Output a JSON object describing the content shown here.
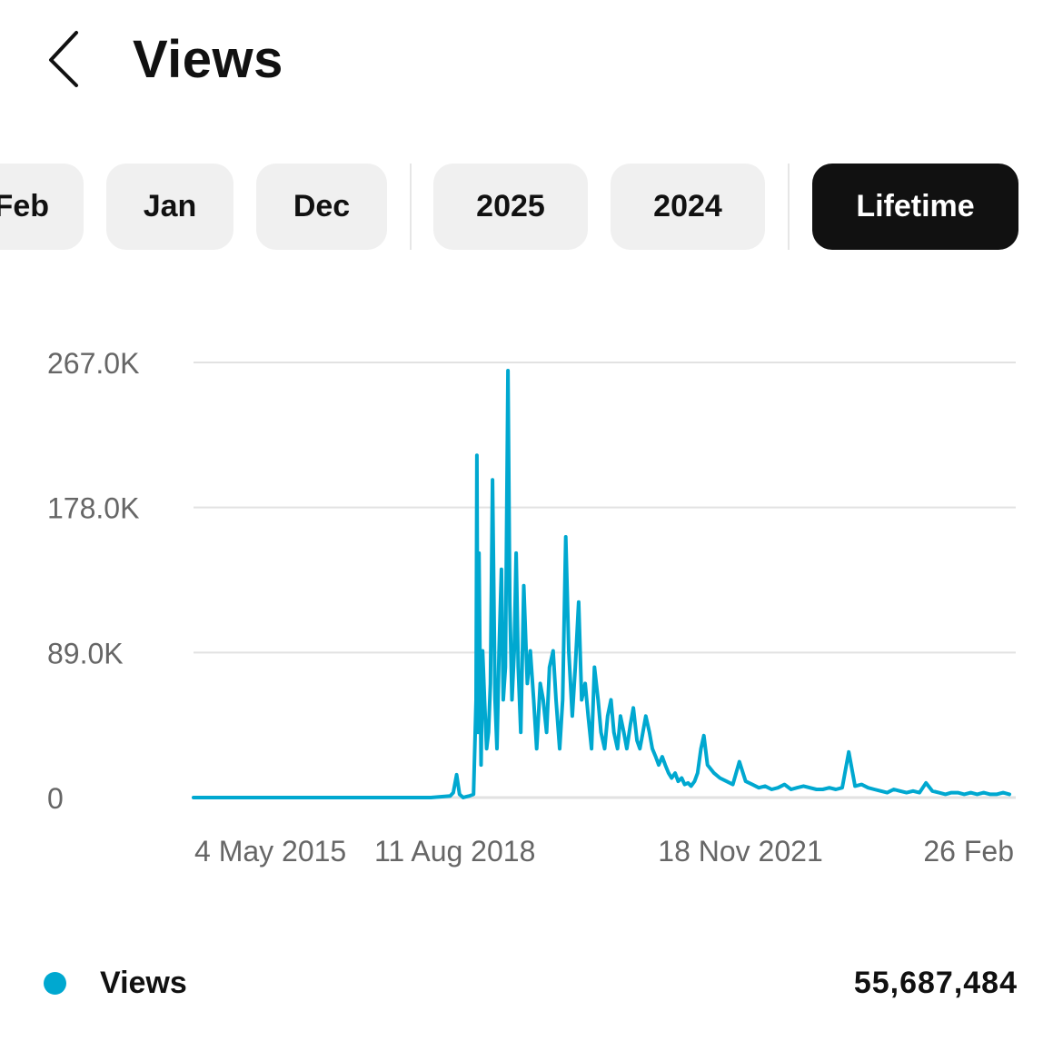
{
  "header": {
    "back_icon": "chevron-left-icon",
    "title": "Views"
  },
  "tabs": [
    {
      "label": "Feb",
      "active": false
    },
    {
      "label": "Jan",
      "active": false
    },
    {
      "label": "Dec",
      "active": false
    },
    {
      "label": "2025",
      "active": false
    },
    {
      "label": "2024",
      "active": false
    },
    {
      "label": "Lifetime",
      "active": true
    }
  ],
  "colors": {
    "series": "#00a8d0",
    "active_tab_bg": "#111111",
    "tab_bg": "#f0f0f0",
    "grid": "#e2e2e2",
    "axis_text": "#666666"
  },
  "chart_data": {
    "type": "line",
    "title": "",
    "xlabel": "",
    "ylabel": "",
    "x_tick_labels": [
      "4 May 2015",
      "11 Aug 2018",
      "18 Nov 2021",
      "26 Feb"
    ],
    "y_tick_labels": [
      "0",
      "89.0K",
      "178.0K",
      "267.0K"
    ],
    "y_ticks": [
      0,
      89000,
      178000,
      267000
    ],
    "ylim": [
      0,
      267000
    ],
    "xlim": [
      "2015-05-04",
      "2025-12-31"
    ],
    "grid": true,
    "legend_position": "bottom",
    "series": [
      {
        "name": "Views",
        "x": [
          "2015-05-04",
          "2016-06-01",
          "2017-06-01",
          "2018-06-01",
          "2018-09-01",
          "2018-09-15",
          "2018-10-01",
          "2018-10-15",
          "2018-11-01",
          "2018-11-15",
          "2018-12-01",
          "2018-12-20",
          "2019-01-01",
          "2019-01-05",
          "2019-01-10",
          "2019-01-15",
          "2019-01-20",
          "2019-01-25",
          "2019-02-01",
          "2019-02-10",
          "2019-02-20",
          "2019-03-01",
          "2019-03-10",
          "2019-03-20",
          "2019-04-01",
          "2019-04-10",
          "2019-04-20",
          "2019-05-01",
          "2019-05-10",
          "2019-05-20",
          "2019-06-01",
          "2019-06-10",
          "2019-06-20",
          "2019-07-01",
          "2019-07-10",
          "2019-07-20",
          "2019-08-01",
          "2019-08-15",
          "2019-09-01",
          "2019-09-15",
          "2019-10-01",
          "2019-10-15",
          "2019-11-01",
          "2019-11-15",
          "2019-12-01",
          "2019-12-15",
          "2020-01-01",
          "2020-01-15",
          "2020-02-01",
          "2020-02-15",
          "2020-03-01",
          "2020-03-15",
          "2020-04-01",
          "2020-04-15",
          "2020-05-01",
          "2020-05-15",
          "2020-06-01",
          "2020-06-15",
          "2020-07-01",
          "2020-07-15",
          "2020-08-01",
          "2020-08-15",
          "2020-09-01",
          "2020-09-15",
          "2020-10-01",
          "2020-10-15",
          "2020-11-01",
          "2020-11-15",
          "2020-12-01",
          "2020-12-15",
          "2021-01-01",
          "2021-01-15",
          "2021-02-01",
          "2021-02-15",
          "2021-03-01",
          "2021-03-15",
          "2021-04-01",
          "2021-04-15",
          "2021-05-01",
          "2021-05-15",
          "2021-06-01",
          "2021-06-15",
          "2021-07-01",
          "2021-07-15",
          "2021-08-01",
          "2021-08-15",
          "2021-09-01",
          "2021-09-15",
          "2021-10-01",
          "2021-10-15",
          "2021-11-01",
          "2021-11-15",
          "2021-12-01",
          "2021-12-15",
          "2022-01-01",
          "2022-02-01",
          "2022-03-01",
          "2022-04-01",
          "2022-05-01",
          "2022-06-01",
          "2022-07-01",
          "2022-08-01",
          "2022-09-01",
          "2022-10-01",
          "2022-11-01",
          "2022-12-01",
          "2023-01-01",
          "2023-02-01",
          "2023-03-01",
          "2023-04-01",
          "2023-05-01",
          "2023-06-01",
          "2023-07-01",
          "2023-08-01",
          "2023-09-01",
          "2023-10-01",
          "2023-11-01",
          "2023-12-01",
          "2024-01-01",
          "2024-02-01",
          "2024-03-01",
          "2024-04-01",
          "2024-05-01",
          "2024-06-01",
          "2024-07-01",
          "2024-08-01",
          "2024-09-01",
          "2024-10-01",
          "2024-11-01",
          "2024-12-01",
          "2025-01-01",
          "2025-02-01",
          "2025-03-01",
          "2025-04-01",
          "2025-05-01",
          "2025-06-01",
          "2025-07-01",
          "2025-08-01",
          "2025-09-01",
          "2025-10-01",
          "2025-11-01",
          "2025-12-01"
        ],
        "values": [
          0,
          0,
          0,
          0,
          1000,
          3000,
          14000,
          2000,
          0,
          500,
          1000,
          2000,
          60000,
          210000,
          40000,
          150000,
          80000,
          20000,
          90000,
          60000,
          30000,
          40000,
          70000,
          195000,
          60000,
          30000,
          90000,
          140000,
          60000,
          80000,
          262000,
          120000,
          60000,
          90000,
          150000,
          80000,
          40000,
          130000,
          70000,
          90000,
          60000,
          30000,
          70000,
          60000,
          40000,
          80000,
          90000,
          60000,
          30000,
          60000,
          160000,
          90000,
          50000,
          80000,
          120000,
          60000,
          70000,
          50000,
          30000,
          80000,
          60000,
          40000,
          30000,
          50000,
          60000,
          40000,
          30000,
          50000,
          40000,
          30000,
          45000,
          55000,
          35000,
          30000,
          40000,
          50000,
          40000,
          30000,
          25000,
          20000,
          25000,
          20000,
          15000,
          12000,
          15000,
          10000,
          12000,
          8000,
          9000,
          7000,
          10000,
          15000,
          30000,
          38000,
          20000,
          15000,
          12000,
          10000,
          8000,
          22000,
          10000,
          8000,
          6000,
          7000,
          5000,
          6000,
          8000,
          5000,
          6000,
          7000,
          6000,
          5000,
          5000,
          6000,
          5000,
          6000,
          28000,
          7000,
          8000,
          6000,
          5000,
          4000,
          3000,
          5000,
          4000,
          3000,
          4000,
          3000,
          9000,
          4000,
          3000,
          2000,
          3000,
          3000,
          2000,
          3000,
          2000,
          3000,
          2000,
          2000,
          3000,
          2000
        ]
      }
    ]
  },
  "legend": {
    "label": "Views",
    "total": "55,687,484"
  }
}
